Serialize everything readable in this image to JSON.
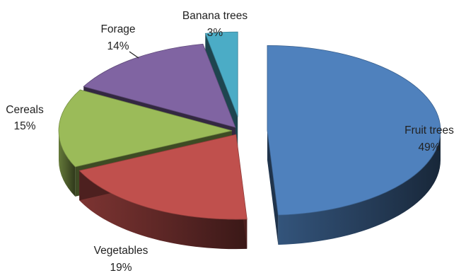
{
  "chart_data": {
    "type": "pie",
    "title": "",
    "categories": [
      "Fruit trees",
      "Vegetables",
      "Cereals",
      "Forage",
      "Banana trees"
    ],
    "values": [
      49,
      19,
      15,
      14,
      3
    ],
    "value_labels": [
      "49%",
      "19%",
      "15%",
      "14%",
      "3%"
    ],
    "colors": [
      "#4F81BD",
      "#C0504D",
      "#9BBB59",
      "#8064A2",
      "#4BACC6"
    ],
    "style": "3d-exploded",
    "legend": "none"
  }
}
